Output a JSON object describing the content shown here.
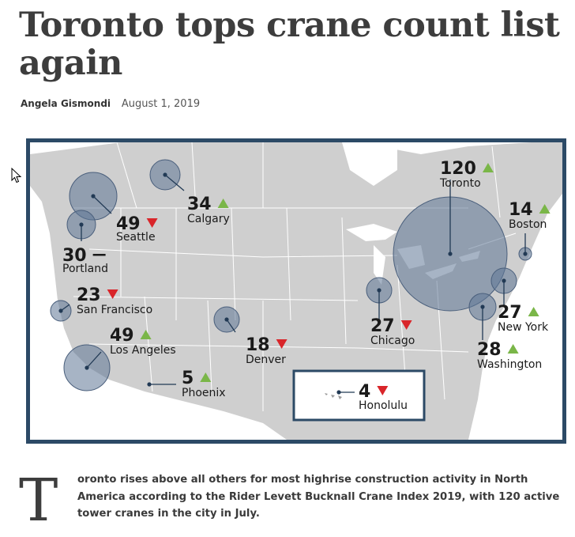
{
  "article": {
    "title": "Toronto tops crane count list again",
    "author": "Angela Gismondi",
    "date": "August 1, 2019",
    "dropcap": "T",
    "lede": "oronto rises above all others for most highrise construction activity in North America according to the Rider Levett Bucknall Crane Index 2019, with 120 active tower cranes in the city in July."
  },
  "map": {
    "colors": {
      "border": "#2c4a66",
      "land": "#cfcfcf",
      "bubble": "#5f7796",
      "up": "#7ab648",
      "down": "#d9252a",
      "text": "#1a1a1a"
    },
    "cities": [
      {
        "name": "Toronto",
        "count": "120",
        "trend": "up"
      },
      {
        "name": "Boston",
        "count": "14",
        "trend": "up"
      },
      {
        "name": "New York",
        "count": "27",
        "trend": "up"
      },
      {
        "name": "Washington",
        "count": "28",
        "trend": "up"
      },
      {
        "name": "Chicago",
        "count": "27",
        "trend": "down"
      },
      {
        "name": "Calgary",
        "count": "34",
        "trend": "up"
      },
      {
        "name": "Seattle",
        "count": "49",
        "trend": "down"
      },
      {
        "name": "Portland",
        "count": "30",
        "trend": "flat"
      },
      {
        "name": "San Francisco",
        "count": "23",
        "trend": "down"
      },
      {
        "name": "Los Angeles",
        "count": "49",
        "trend": "up"
      },
      {
        "name": "Denver",
        "count": "18",
        "trend": "down"
      },
      {
        "name": "Phoenix",
        "count": "5",
        "trend": "up"
      },
      {
        "name": "Honolulu",
        "count": "4",
        "trend": "down"
      }
    ]
  }
}
